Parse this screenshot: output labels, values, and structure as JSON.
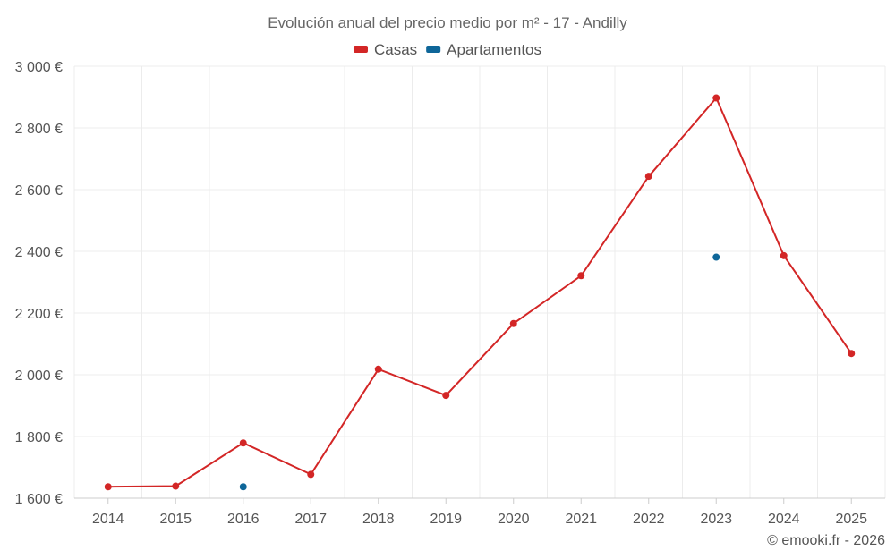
{
  "chart_data": {
    "type": "line",
    "title": "Evolución anual del precio medio por m² - 17 - Andilly",
    "xlabel": "",
    "ylabel": "",
    "categories": [
      "2014",
      "2015",
      "2016",
      "2017",
      "2018",
      "2019",
      "2020",
      "2021",
      "2022",
      "2023",
      "2024",
      "2025"
    ],
    "ylim": [
      1600,
      3000
    ],
    "yticks": [
      1600,
      1800,
      2000,
      2200,
      2400,
      2600,
      2800,
      3000
    ],
    "ytick_labels": [
      "1 600 €",
      "1 800 €",
      "2 000 €",
      "2 200 €",
      "2 400 €",
      "2 600 €",
      "2 800 €",
      "3 000 €"
    ],
    "grid": true,
    "legend_position": "top-center",
    "series": [
      {
        "name": "Casas",
        "color": "#d32626",
        "mode": "line-markers",
        "values": [
          1637,
          1639,
          1779,
          1677,
          2018,
          1933,
          2166,
          2321,
          2643,
          2897,
          2386,
          2069
        ]
      },
      {
        "name": "Apartamentos",
        "color": "#0e6699",
        "mode": "markers",
        "values": [
          null,
          null,
          1637,
          null,
          null,
          null,
          null,
          null,
          null,
          2381,
          null,
          null
        ]
      }
    ]
  },
  "credit": "© emooki.fr - 2026"
}
